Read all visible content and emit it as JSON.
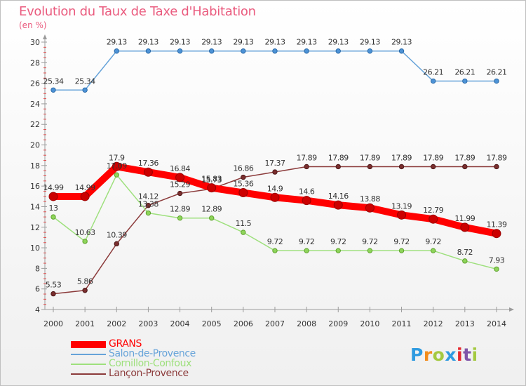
{
  "title": "Evolution du Taux de Taxe d'Habitation",
  "subtitle": "(en %)",
  "logo": {
    "letters": [
      "P",
      "r",
      "o",
      "x",
      "i",
      "t",
      "i"
    ],
    "colors": [
      "#2f9be0",
      "#f28c1c",
      "#a4c940",
      "#2f9be0",
      "#e6262c",
      "#7f55a8",
      "#a4c940"
    ]
  },
  "chart_data": {
    "type": "line",
    "x": [
      "2000",
      "2001",
      "2002",
      "2003",
      "2004",
      "2005",
      "2006",
      "2007",
      "2008",
      "2009",
      "2010",
      "2011",
      "2012",
      "2013",
      "2014"
    ],
    "ylim": [
      4,
      30
    ],
    "yticks": [
      "4",
      "6",
      "8",
      "10",
      "12",
      "14",
      "16",
      "18",
      "20",
      "22",
      "24",
      "26",
      "28",
      "30"
    ],
    "grid": false,
    "legend_position": "bottom-left",
    "series": [
      {
        "name": "GRANS",
        "color": "#ff0000",
        "values": [
          14.99,
          14.99,
          17.9,
          17.36,
          16.84,
          15.83,
          15.36,
          14.9,
          14.6,
          14.16,
          13.88,
          13.19,
          12.79,
          11.99,
          11.39
        ],
        "labels": [
          "14.99",
          "14.99",
          "17.9",
          "17.36",
          "16.84",
          "15.83",
          "15.36",
          "14.9",
          "14.6",
          "14.16",
          "13.88",
          "13.19",
          "12.79",
          "11.99",
          "11.39"
        ]
      },
      {
        "name": "Salon-de-Provence",
        "color": "#66a3d9",
        "values": [
          25.34,
          25.34,
          29.13,
          29.13,
          29.13,
          29.13,
          29.13,
          29.13,
          29.13,
          29.13,
          29.13,
          29.13,
          26.21,
          26.21,
          26.21
        ],
        "labels": [
          "25.34",
          "25.34",
          "29.13",
          "29.13",
          "29.13",
          "29.13",
          "29.13",
          "29.13",
          "29.13",
          "29.13",
          "29.13",
          "29.13",
          "26.21",
          "26.21",
          "26.21"
        ]
      },
      {
        "name": "Cornillon-Confoux",
        "color": "#9ee07d",
        "values": [
          13,
          10.63,
          17.09,
          13.38,
          12.89,
          12.89,
          11.5,
          9.72,
          9.72,
          9.72,
          9.72,
          9.72,
          9.72,
          8.72,
          7.93
        ],
        "labels": [
          "13",
          "10.63",
          "17.09",
          "13.38",
          "12.89",
          "12.89",
          "11.5",
          "9.72",
          "9.72",
          "9.72",
          "9.72",
          "9.72",
          "9.72",
          "8.72",
          "7.93"
        ]
      },
      {
        "name": "Lançon-Provence",
        "color": "#8b3a3a",
        "values": [
          5.53,
          5.86,
          10.39,
          14.12,
          15.29,
          15.73,
          16.86,
          17.37,
          17.89,
          17.89,
          17.89,
          17.89,
          17.89,
          17.89,
          17.89
        ],
        "labels": [
          "5.53",
          "5.86",
          "10.39",
          "14.12",
          "15.29",
          "15.73",
          "16.86",
          "17.37",
          "17.89",
          "17.89",
          "17.89",
          "17.89",
          "17.89",
          "17.89",
          "17.89"
        ]
      }
    ]
  }
}
